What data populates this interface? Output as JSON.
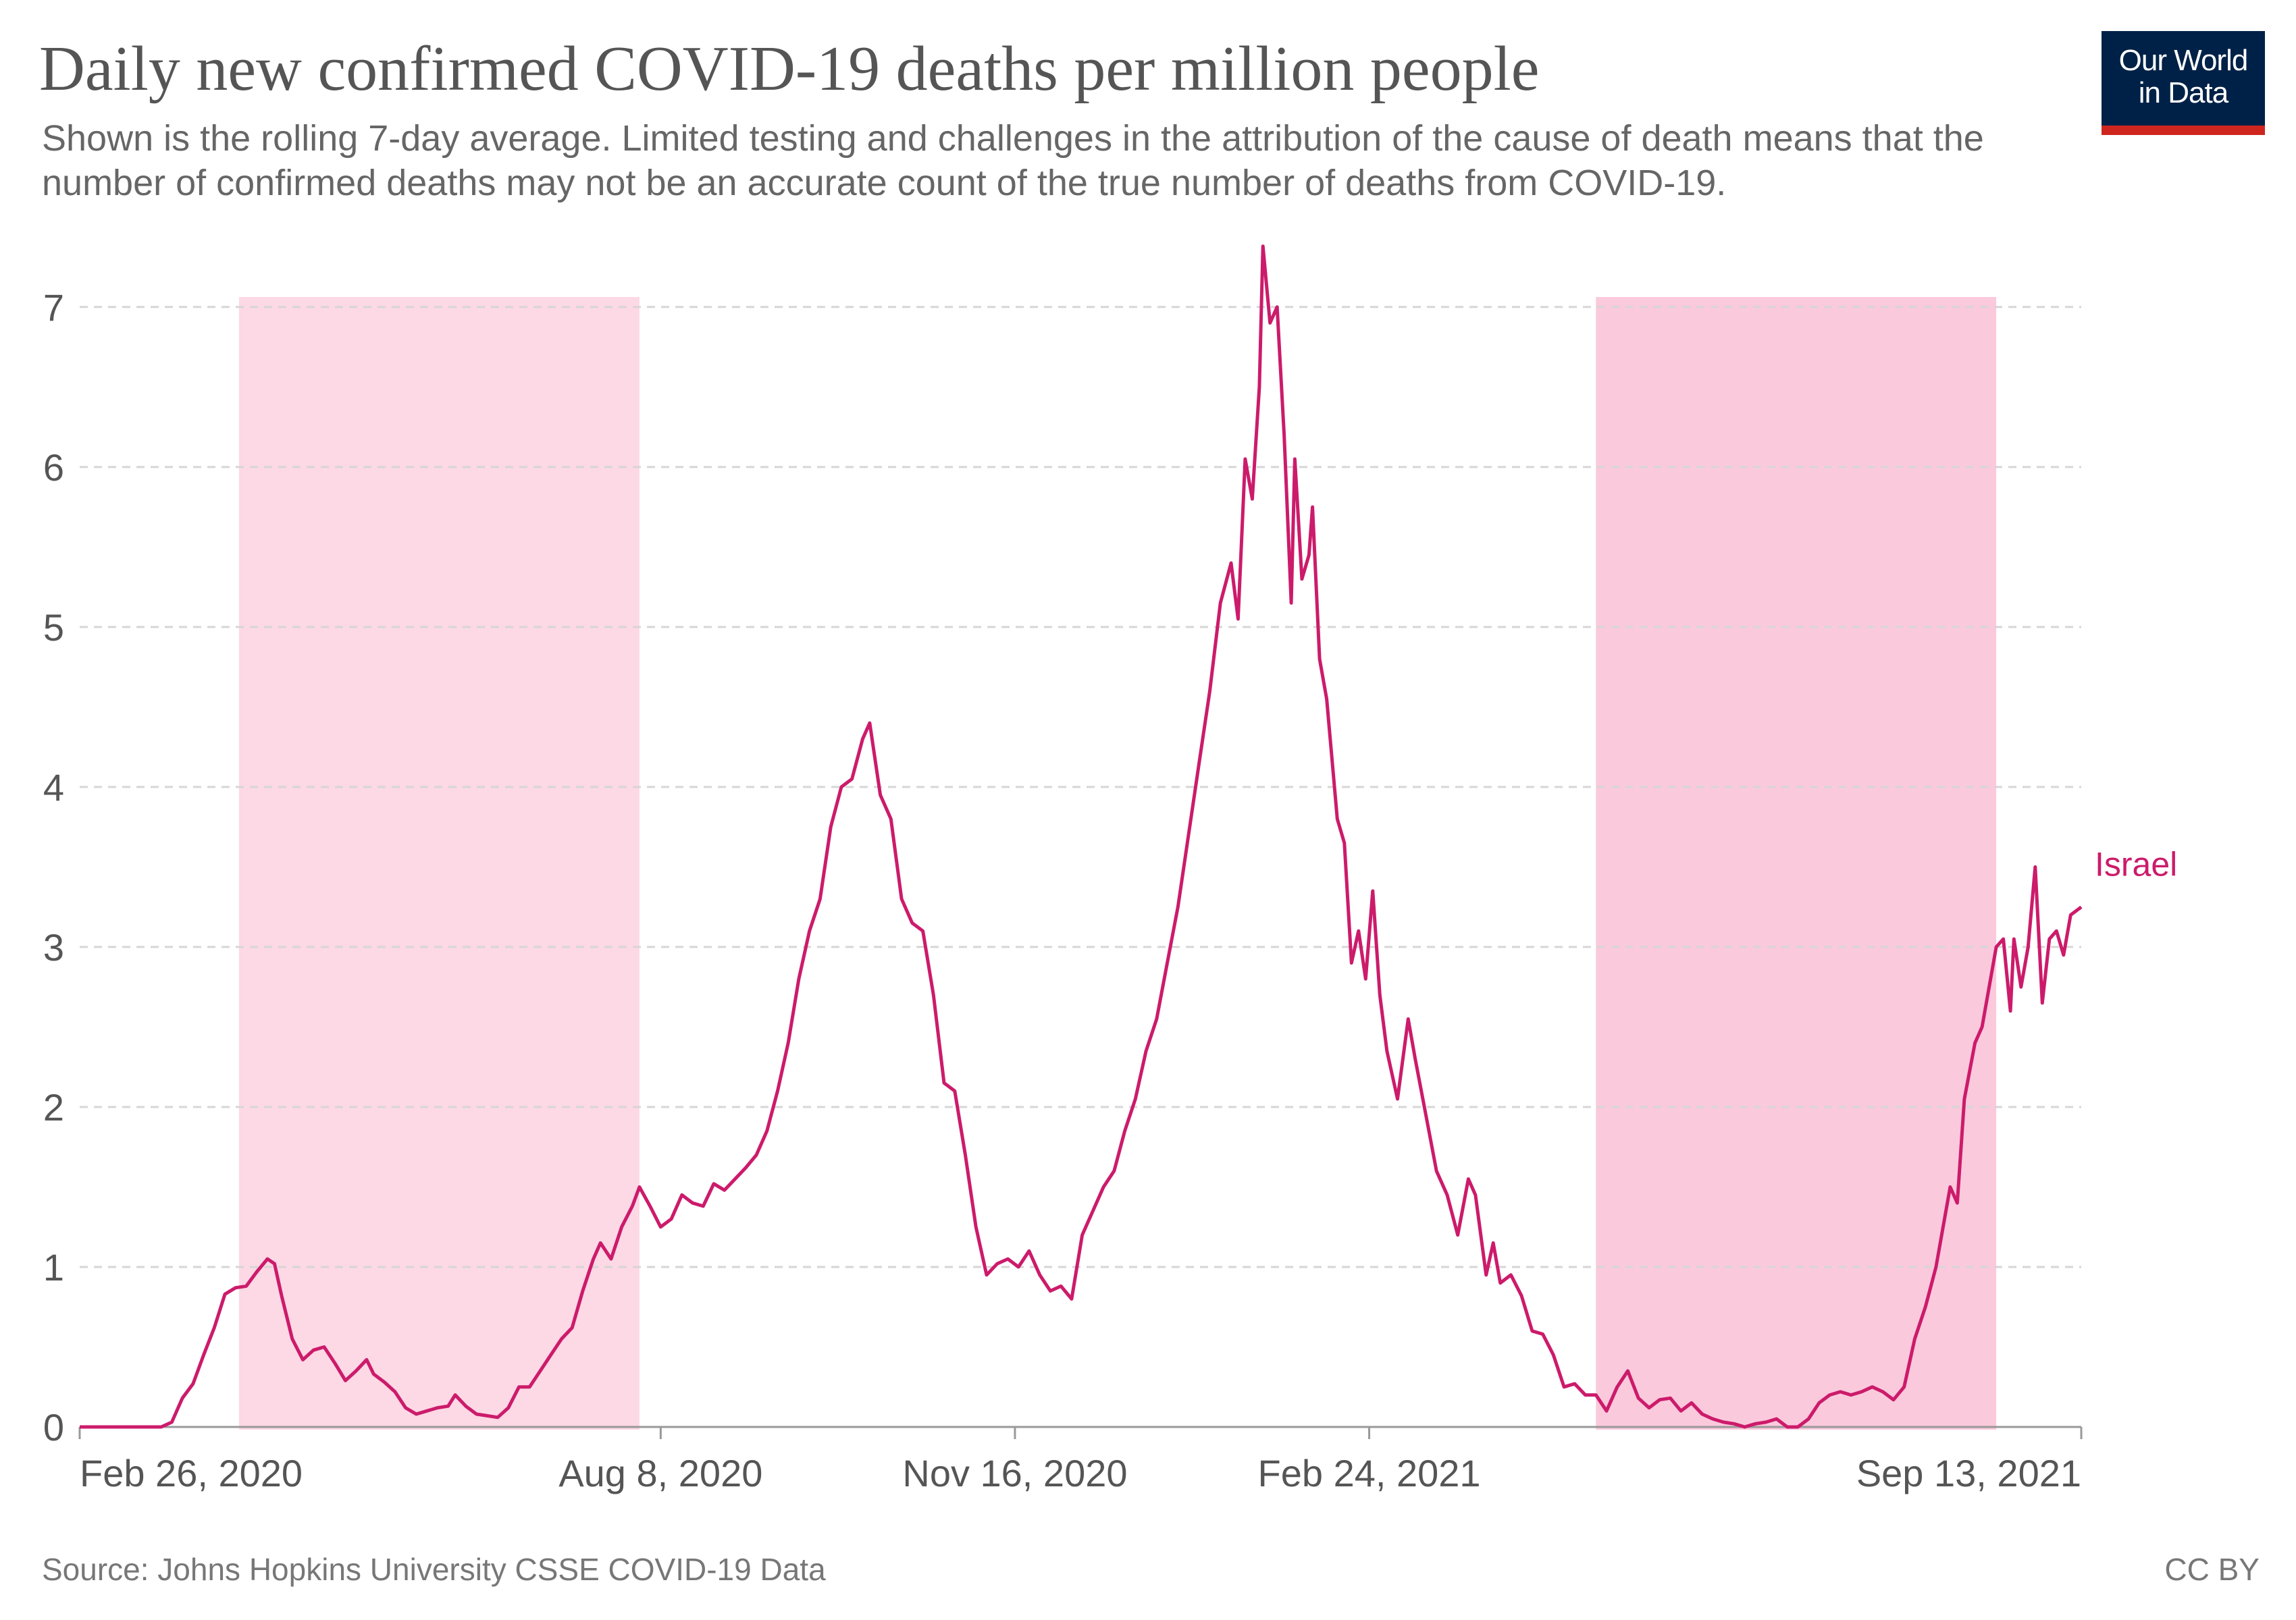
{
  "header": {
    "title": "Daily new confirmed COVID-19 deaths per million people",
    "subtitle": "Shown is the rolling 7-day average. Limited testing and challenges in the attribution of the cause of death means that the number of confirmed deaths may not be an accurate count of the true number of deaths from COVID-19."
  },
  "logo": {
    "text": "Our World in Data",
    "bg_color": "#002147",
    "accent_color": "#ce261e"
  },
  "footer": {
    "source": "Source: Johns Hopkins University CSSE COVID-19 Data",
    "license": "CC BY"
  },
  "chart_data": {
    "type": "line",
    "title": "Daily new confirmed COVID-19 deaths per million people",
    "subtitle": "Shown is the rolling 7-day average. Limited testing and challenges in the attribution of the cause of death means that the number of confirmed deaths may not be an accurate count of the true number of deaths from COVID-19.",
    "xlabel": "",
    "ylabel": "",
    "x_axis": {
      "type": "date",
      "range": [
        "2020-02-26",
        "2021-09-13"
      ],
      "ticks": [
        {
          "date": "2020-02-26",
          "label": "Feb 26, 2020"
        },
        {
          "date": "2020-08-08",
          "label": "Aug 8, 2020"
        },
        {
          "date": "2020-11-16",
          "label": "Nov 16, 2020"
        },
        {
          "date": "2021-02-24",
          "label": "Feb 24, 2021"
        },
        {
          "date": "2021-09-13",
          "label": "Sep 13, 2021"
        }
      ]
    },
    "y_axis": {
      "range": [
        0,
        7.4
      ],
      "ticks": [
        0,
        1,
        2,
        3,
        4,
        5,
        6,
        7
      ]
    },
    "grid": "horizontal dashed",
    "highlight_bands": [
      {
        "start": "2020-04-11",
        "end": "2020-08-02",
        "color": "#fdd8e5"
      },
      {
        "start": "2021-04-29",
        "end": "2021-08-20",
        "color": "#fbc9dc"
      }
    ],
    "series": [
      {
        "name": "Israel",
        "color": "#cc1b6b",
        "points": [
          [
            "2020-02-26",
            0
          ],
          [
            "2020-03-10",
            0
          ],
          [
            "2020-03-20",
            0
          ],
          [
            "2020-03-23",
            0.03
          ],
          [
            "2020-03-26",
            0.18
          ],
          [
            "2020-03-29",
            0.27
          ],
          [
            "2020-04-01",
            0.45
          ],
          [
            "2020-04-04",
            0.62
          ],
          [
            "2020-04-07",
            0.83
          ],
          [
            "2020-04-10",
            0.87
          ],
          [
            "2020-04-13",
            0.88
          ],
          [
            "2020-04-16",
            0.97
          ],
          [
            "2020-04-19",
            1.05
          ],
          [
            "2020-04-21",
            1.02
          ],
          [
            "2020-04-23",
            0.82
          ],
          [
            "2020-04-26",
            0.55
          ],
          [
            "2020-04-29",
            0.42
          ],
          [
            "2020-05-02",
            0.48
          ],
          [
            "2020-05-05",
            0.5
          ],
          [
            "2020-05-08",
            0.4
          ],
          [
            "2020-05-11",
            0.29
          ],
          [
            "2020-05-14",
            0.35
          ],
          [
            "2020-05-17",
            0.42
          ],
          [
            "2020-05-19",
            0.33
          ],
          [
            "2020-05-22",
            0.28
          ],
          [
            "2020-05-25",
            0.22
          ],
          [
            "2020-05-28",
            0.12
          ],
          [
            "2020-05-31",
            0.08
          ],
          [
            "2020-06-03",
            0.1
          ],
          [
            "2020-06-06",
            0.12
          ],
          [
            "2020-06-09",
            0.13
          ],
          [
            "2020-06-11",
            0.2
          ],
          [
            "2020-06-14",
            0.13
          ],
          [
            "2020-06-17",
            0.08
          ],
          [
            "2020-06-20",
            0.07
          ],
          [
            "2020-06-23",
            0.06
          ],
          [
            "2020-06-26",
            0.12
          ],
          [
            "2020-06-29",
            0.25
          ],
          [
            "2020-07-02",
            0.25
          ],
          [
            "2020-07-05",
            0.35
          ],
          [
            "2020-07-08",
            0.45
          ],
          [
            "2020-07-11",
            0.55
          ],
          [
            "2020-07-14",
            0.62
          ],
          [
            "2020-07-17",
            0.85
          ],
          [
            "2020-07-20",
            1.05
          ],
          [
            "2020-07-22",
            1.15
          ],
          [
            "2020-07-25",
            1.05
          ],
          [
            "2020-07-28",
            1.25
          ],
          [
            "2020-07-31",
            1.38
          ],
          [
            "2020-08-02",
            1.5
          ],
          [
            "2020-08-05",
            1.38
          ],
          [
            "2020-08-08",
            1.25
          ],
          [
            "2020-08-11",
            1.3
          ],
          [
            "2020-08-14",
            1.45
          ],
          [
            "2020-08-17",
            1.4
          ],
          [
            "2020-08-20",
            1.38
          ],
          [
            "2020-08-23",
            1.52
          ],
          [
            "2020-08-26",
            1.48
          ],
          [
            "2020-08-29",
            1.55
          ],
          [
            "2020-09-01",
            1.62
          ],
          [
            "2020-09-04",
            1.7
          ],
          [
            "2020-09-07",
            1.85
          ],
          [
            "2020-09-10",
            2.1
          ],
          [
            "2020-09-13",
            2.4
          ],
          [
            "2020-09-16",
            2.8
          ],
          [
            "2020-09-19",
            3.1
          ],
          [
            "2020-09-22",
            3.3
          ],
          [
            "2020-09-25",
            3.75
          ],
          [
            "2020-09-28",
            4.0
          ],
          [
            "2020-10-01",
            4.05
          ],
          [
            "2020-10-04",
            4.3
          ],
          [
            "2020-10-06",
            4.4
          ],
          [
            "2020-10-09",
            3.95
          ],
          [
            "2020-10-12",
            3.8
          ],
          [
            "2020-10-15",
            3.3
          ],
          [
            "2020-10-18",
            3.15
          ],
          [
            "2020-10-21",
            3.1
          ],
          [
            "2020-10-24",
            2.7
          ],
          [
            "2020-10-27",
            2.15
          ],
          [
            "2020-10-30",
            2.1
          ],
          [
            "2020-11-02",
            1.7
          ],
          [
            "2020-11-05",
            1.25
          ],
          [
            "2020-11-08",
            0.95
          ],
          [
            "2020-11-11",
            1.02
          ],
          [
            "2020-11-14",
            1.05
          ],
          [
            "2020-11-17",
            1.0
          ],
          [
            "2020-11-20",
            1.1
          ],
          [
            "2020-11-23",
            0.95
          ],
          [
            "2020-11-26",
            0.85
          ],
          [
            "2020-11-29",
            0.88
          ],
          [
            "2020-12-02",
            0.8
          ],
          [
            "2020-12-05",
            1.2
          ],
          [
            "2020-12-08",
            1.35
          ],
          [
            "2020-12-11",
            1.5
          ],
          [
            "2020-12-14",
            1.6
          ],
          [
            "2020-12-17",
            1.85
          ],
          [
            "2020-12-20",
            2.05
          ],
          [
            "2020-12-23",
            2.35
          ],
          [
            "2020-12-26",
            2.55
          ],
          [
            "2020-12-29",
            2.9
          ],
          [
            "2021-01-01",
            3.25
          ],
          [
            "2021-01-04",
            3.7
          ],
          [
            "2021-01-07",
            4.15
          ],
          [
            "2021-01-10",
            4.6
          ],
          [
            "2021-01-13",
            5.15
          ],
          [
            "2021-01-16",
            5.4
          ],
          [
            "2021-01-18",
            5.05
          ],
          [
            "2021-01-20",
            6.05
          ],
          [
            "2021-01-22",
            5.8
          ],
          [
            "2021-01-24",
            6.5
          ],
          [
            "2021-01-25",
            7.38
          ],
          [
            "2021-01-27",
            6.9
          ],
          [
            "2021-01-29",
            7.0
          ],
          [
            "2021-01-31",
            6.2
          ],
          [
            "2021-02-02",
            5.15
          ],
          [
            "2021-02-03",
            6.05
          ],
          [
            "2021-02-05",
            5.3
          ],
          [
            "2021-02-07",
            5.45
          ],
          [
            "2021-02-08",
            5.75
          ],
          [
            "2021-02-10",
            4.8
          ],
          [
            "2021-02-12",
            4.55
          ],
          [
            "2021-02-15",
            3.8
          ],
          [
            "2021-02-17",
            3.65
          ],
          [
            "2021-02-19",
            2.9
          ],
          [
            "2021-02-21",
            3.1
          ],
          [
            "2021-02-23",
            2.8
          ],
          [
            "2021-02-25",
            3.35
          ],
          [
            "2021-02-27",
            2.7
          ],
          [
            "2021-03-01",
            2.35
          ],
          [
            "2021-03-04",
            2.05
          ],
          [
            "2021-03-07",
            2.55
          ],
          [
            "2021-03-09",
            2.3
          ],
          [
            "2021-03-12",
            1.95
          ],
          [
            "2021-03-15",
            1.6
          ],
          [
            "2021-03-18",
            1.45
          ],
          [
            "2021-03-21",
            1.2
          ],
          [
            "2021-03-24",
            1.55
          ],
          [
            "2021-03-26",
            1.45
          ],
          [
            "2021-03-29",
            0.95
          ],
          [
            "2021-03-31",
            1.15
          ],
          [
            "2021-04-02",
            0.9
          ],
          [
            "2021-04-05",
            0.95
          ],
          [
            "2021-04-08",
            0.82
          ],
          [
            "2021-04-11",
            0.6
          ],
          [
            "2021-04-14",
            0.58
          ],
          [
            "2021-04-17",
            0.45
          ],
          [
            "2021-04-20",
            0.25
          ],
          [
            "2021-04-23",
            0.27
          ],
          [
            "2021-04-26",
            0.2
          ],
          [
            "2021-04-29",
            0.2
          ],
          [
            "2021-05-02",
            0.1
          ],
          [
            "2021-05-05",
            0.25
          ],
          [
            "2021-05-08",
            0.35
          ],
          [
            "2021-05-11",
            0.18
          ],
          [
            "2021-05-14",
            0.12
          ],
          [
            "2021-05-17",
            0.17
          ],
          [
            "2021-05-20",
            0.18
          ],
          [
            "2021-05-23",
            0.1
          ],
          [
            "2021-05-26",
            0.15
          ],
          [
            "2021-05-29",
            0.08
          ],
          [
            "2021-06-01",
            0.05
          ],
          [
            "2021-06-04",
            0.03
          ],
          [
            "2021-06-07",
            0.02
          ],
          [
            "2021-06-10",
            0.0
          ],
          [
            "2021-06-13",
            0.02
          ],
          [
            "2021-06-16",
            0.03
          ],
          [
            "2021-06-19",
            0.05
          ],
          [
            "2021-06-22",
            0.0
          ],
          [
            "2021-06-25",
            0.0
          ],
          [
            "2021-06-28",
            0.05
          ],
          [
            "2021-07-01",
            0.15
          ],
          [
            "2021-07-04",
            0.2
          ],
          [
            "2021-07-07",
            0.22
          ],
          [
            "2021-07-10",
            0.2
          ],
          [
            "2021-07-13",
            0.22
          ],
          [
            "2021-07-16",
            0.25
          ],
          [
            "2021-07-19",
            0.22
          ],
          [
            "2021-07-22",
            0.17
          ],
          [
            "2021-07-25",
            0.25
          ],
          [
            "2021-07-28",
            0.55
          ],
          [
            "2021-07-31",
            0.75
          ],
          [
            "2021-08-03",
            1.0
          ],
          [
            "2021-08-05",
            1.25
          ],
          [
            "2021-08-07",
            1.5
          ],
          [
            "2021-08-09",
            1.4
          ],
          [
            "2021-08-11",
            2.05
          ],
          [
            "2021-08-14",
            2.4
          ],
          [
            "2021-08-16",
            2.5
          ],
          [
            "2021-08-18",
            2.75
          ],
          [
            "2021-08-20",
            3.0
          ],
          [
            "2021-08-22",
            3.05
          ],
          [
            "2021-08-24",
            2.6
          ],
          [
            "2021-08-25",
            3.05
          ],
          [
            "2021-08-27",
            2.75
          ],
          [
            "2021-08-29",
            3.0
          ],
          [
            "2021-08-31",
            3.5
          ],
          [
            "2021-09-02",
            2.65
          ],
          [
            "2021-09-04",
            3.05
          ],
          [
            "2021-09-06",
            3.1
          ],
          [
            "2021-09-08",
            2.95
          ],
          [
            "2021-09-10",
            3.2
          ],
          [
            "2021-09-13",
            3.25
          ]
        ]
      }
    ]
  }
}
